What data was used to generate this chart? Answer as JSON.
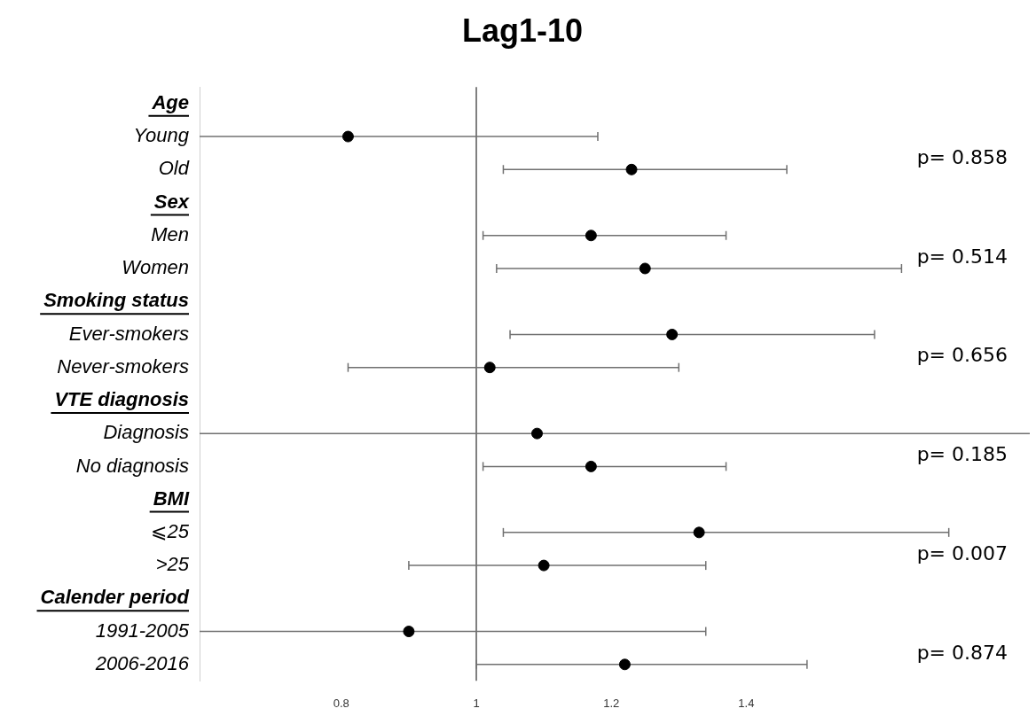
{
  "chart_data": {
    "type": "scatter",
    "orientation": "horizontal",
    "title": "Lag1-10",
    "categories": [
      "Age",
      "Young",
      "Old",
      "Sex",
      "Men",
      "Women",
      "Smoking status",
      "Ever-smokers",
      "Never-smokers",
      "VTE diagnosis",
      "Diagnosis",
      "No diagnosis",
      "BMI",
      "⩽25",
      ">25",
      "Calender period",
      "1991-2005",
      "2006-2016"
    ],
    "values": [
      null,
      0.81,
      1.23,
      null,
      1.17,
      1.25,
      null,
      1.29,
      1.02,
      null,
      1.09,
      1.17,
      null,
      1.33,
      1.1,
      null,
      0.9,
      1.22
    ],
    "errors": [
      null,
      [
        0.59,
        1.18
      ],
      [
        1.04,
        1.46
      ],
      null,
      [
        1.01,
        1.37
      ],
      [
        1.03,
        1.63
      ],
      null,
      [
        1.05,
        1.59
      ],
      [
        0.81,
        1.3
      ],
      null,
      [
        0.59,
        1.82
      ],
      [
        1.01,
        1.37
      ],
      null,
      [
        1.04,
        1.7
      ],
      [
        0.9,
        1.34
      ],
      null,
      [
        0.59,
        1.34
      ],
      [
        1.0,
        1.49
      ]
    ],
    "color": "#000000",
    "marker": "circle",
    "xlim": [
      0.59,
      1.82
    ],
    "xticks": [
      0.8,
      1,
      1.2,
      1.4
    ],
    "ref_lines": [
      {
        "axis": "x",
        "value": 1,
        "color": "#808080"
      }
    ],
    "annotations": [
      "p= 0.858",
      "p= 0.514",
      "p= 0.656",
      "p= 0.185",
      "p= 0.007",
      "p= 0.874"
    ]
  }
}
